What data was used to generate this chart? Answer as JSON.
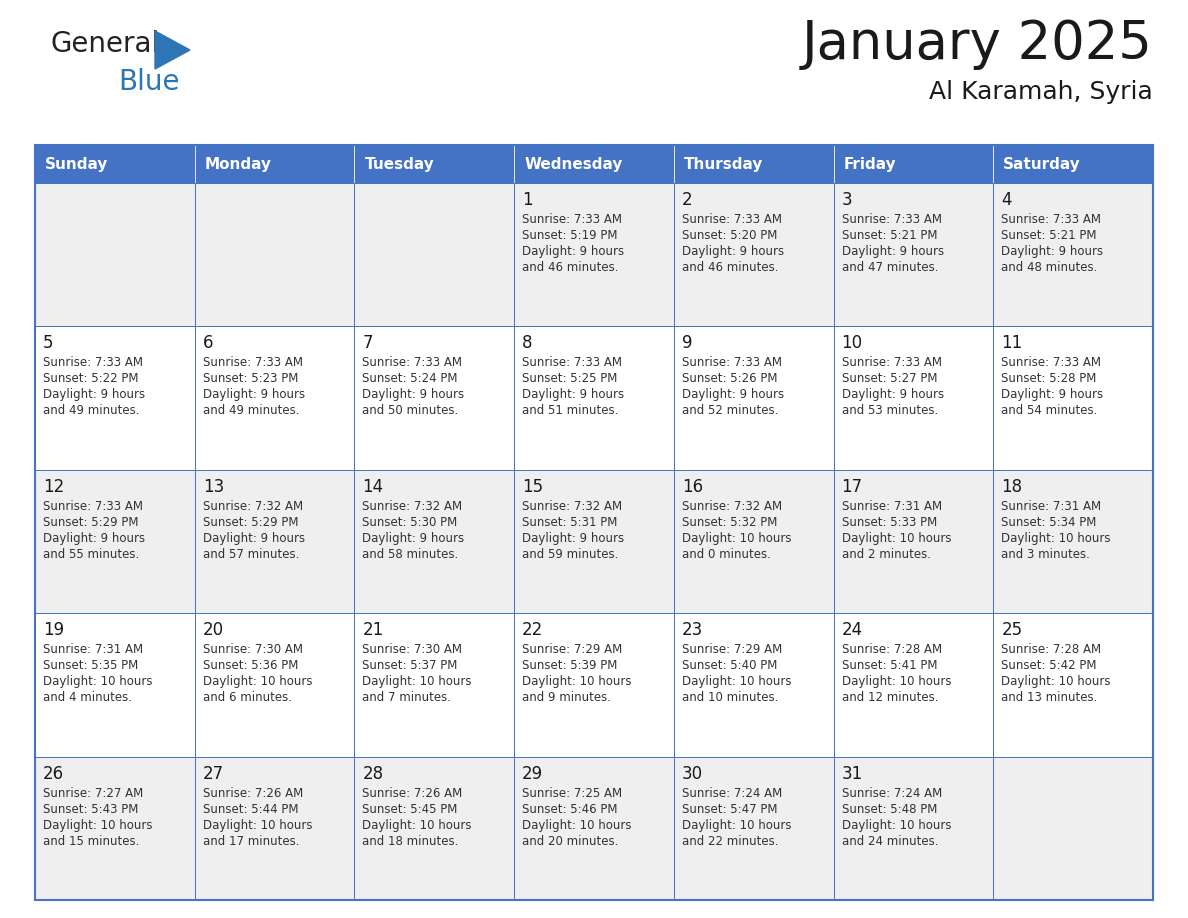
{
  "title": "January 2025",
  "subtitle": "Al Karamah, Syria",
  "header_color": "#4472C4",
  "header_text_color": "#FFFFFF",
  "cell_bg_even": "#EFEFEF",
  "cell_bg_odd": "#FFFFFF",
  "text_color": "#1a1a1a",
  "border_color": "#4472C4",
  "logo_text_color": "#2E75B6",
  "days_of_week": [
    "Sunday",
    "Monday",
    "Tuesday",
    "Wednesday",
    "Thursday",
    "Friday",
    "Saturday"
  ],
  "cal_data": [
    [
      {
        "day": "",
        "sunrise": "",
        "sunset": "",
        "daylight": ""
      },
      {
        "day": "",
        "sunrise": "",
        "sunset": "",
        "daylight": ""
      },
      {
        "day": "",
        "sunrise": "",
        "sunset": "",
        "daylight": ""
      },
      {
        "day": "1",
        "sunrise": "7:33 AM",
        "sunset": "5:19 PM",
        "daylight": "9 hours and 46 minutes."
      },
      {
        "day": "2",
        "sunrise": "7:33 AM",
        "sunset": "5:20 PM",
        "daylight": "9 hours and 46 minutes."
      },
      {
        "day": "3",
        "sunrise": "7:33 AM",
        "sunset": "5:21 PM",
        "daylight": "9 hours and 47 minutes."
      },
      {
        "day": "4",
        "sunrise": "7:33 AM",
        "sunset": "5:21 PM",
        "daylight": "9 hours and 48 minutes."
      }
    ],
    [
      {
        "day": "5",
        "sunrise": "7:33 AM",
        "sunset": "5:22 PM",
        "daylight": "9 hours and 49 minutes."
      },
      {
        "day": "6",
        "sunrise": "7:33 AM",
        "sunset": "5:23 PM",
        "daylight": "9 hours and 49 minutes."
      },
      {
        "day": "7",
        "sunrise": "7:33 AM",
        "sunset": "5:24 PM",
        "daylight": "9 hours and 50 minutes."
      },
      {
        "day": "8",
        "sunrise": "7:33 AM",
        "sunset": "5:25 PM",
        "daylight": "9 hours and 51 minutes."
      },
      {
        "day": "9",
        "sunrise": "7:33 AM",
        "sunset": "5:26 PM",
        "daylight": "9 hours and 52 minutes."
      },
      {
        "day": "10",
        "sunrise": "7:33 AM",
        "sunset": "5:27 PM",
        "daylight": "9 hours and 53 minutes."
      },
      {
        "day": "11",
        "sunrise": "7:33 AM",
        "sunset": "5:28 PM",
        "daylight": "9 hours and 54 minutes."
      }
    ],
    [
      {
        "day": "12",
        "sunrise": "7:33 AM",
        "sunset": "5:29 PM",
        "daylight": "9 hours and 55 minutes."
      },
      {
        "day": "13",
        "sunrise": "7:32 AM",
        "sunset": "5:29 PM",
        "daylight": "9 hours and 57 minutes."
      },
      {
        "day": "14",
        "sunrise": "7:32 AM",
        "sunset": "5:30 PM",
        "daylight": "9 hours and 58 minutes."
      },
      {
        "day": "15",
        "sunrise": "7:32 AM",
        "sunset": "5:31 PM",
        "daylight": "9 hours and 59 minutes."
      },
      {
        "day": "16",
        "sunrise": "7:32 AM",
        "sunset": "5:32 PM",
        "daylight": "10 hours and 0 minutes."
      },
      {
        "day": "17",
        "sunrise": "7:31 AM",
        "sunset": "5:33 PM",
        "daylight": "10 hours and 2 minutes."
      },
      {
        "day": "18",
        "sunrise": "7:31 AM",
        "sunset": "5:34 PM",
        "daylight": "10 hours and 3 minutes."
      }
    ],
    [
      {
        "day": "19",
        "sunrise": "7:31 AM",
        "sunset": "5:35 PM",
        "daylight": "10 hours and 4 minutes."
      },
      {
        "day": "20",
        "sunrise": "7:30 AM",
        "sunset": "5:36 PM",
        "daylight": "10 hours and 6 minutes."
      },
      {
        "day": "21",
        "sunrise": "7:30 AM",
        "sunset": "5:37 PM",
        "daylight": "10 hours and 7 minutes."
      },
      {
        "day": "22",
        "sunrise": "7:29 AM",
        "sunset": "5:39 PM",
        "daylight": "10 hours and 9 minutes."
      },
      {
        "day": "23",
        "sunrise": "7:29 AM",
        "sunset": "5:40 PM",
        "daylight": "10 hours and 10 minutes."
      },
      {
        "day": "24",
        "sunrise": "7:28 AM",
        "sunset": "5:41 PM",
        "daylight": "10 hours and 12 minutes."
      },
      {
        "day": "25",
        "sunrise": "7:28 AM",
        "sunset": "5:42 PM",
        "daylight": "10 hours and 13 minutes."
      }
    ],
    [
      {
        "day": "26",
        "sunrise": "7:27 AM",
        "sunset": "5:43 PM",
        "daylight": "10 hours and 15 minutes."
      },
      {
        "day": "27",
        "sunrise": "7:26 AM",
        "sunset": "5:44 PM",
        "daylight": "10 hours and 17 minutes."
      },
      {
        "day": "28",
        "sunrise": "7:26 AM",
        "sunset": "5:45 PM",
        "daylight": "10 hours and 18 minutes."
      },
      {
        "day": "29",
        "sunrise": "7:25 AM",
        "sunset": "5:46 PM",
        "daylight": "10 hours and 20 minutes."
      },
      {
        "day": "30",
        "sunrise": "7:24 AM",
        "sunset": "5:47 PM",
        "daylight": "10 hours and 22 minutes."
      },
      {
        "day": "31",
        "sunrise": "7:24 AM",
        "sunset": "5:48 PM",
        "daylight": "10 hours and 24 minutes."
      },
      {
        "day": "",
        "sunrise": "",
        "sunset": "",
        "daylight": ""
      }
    ]
  ]
}
